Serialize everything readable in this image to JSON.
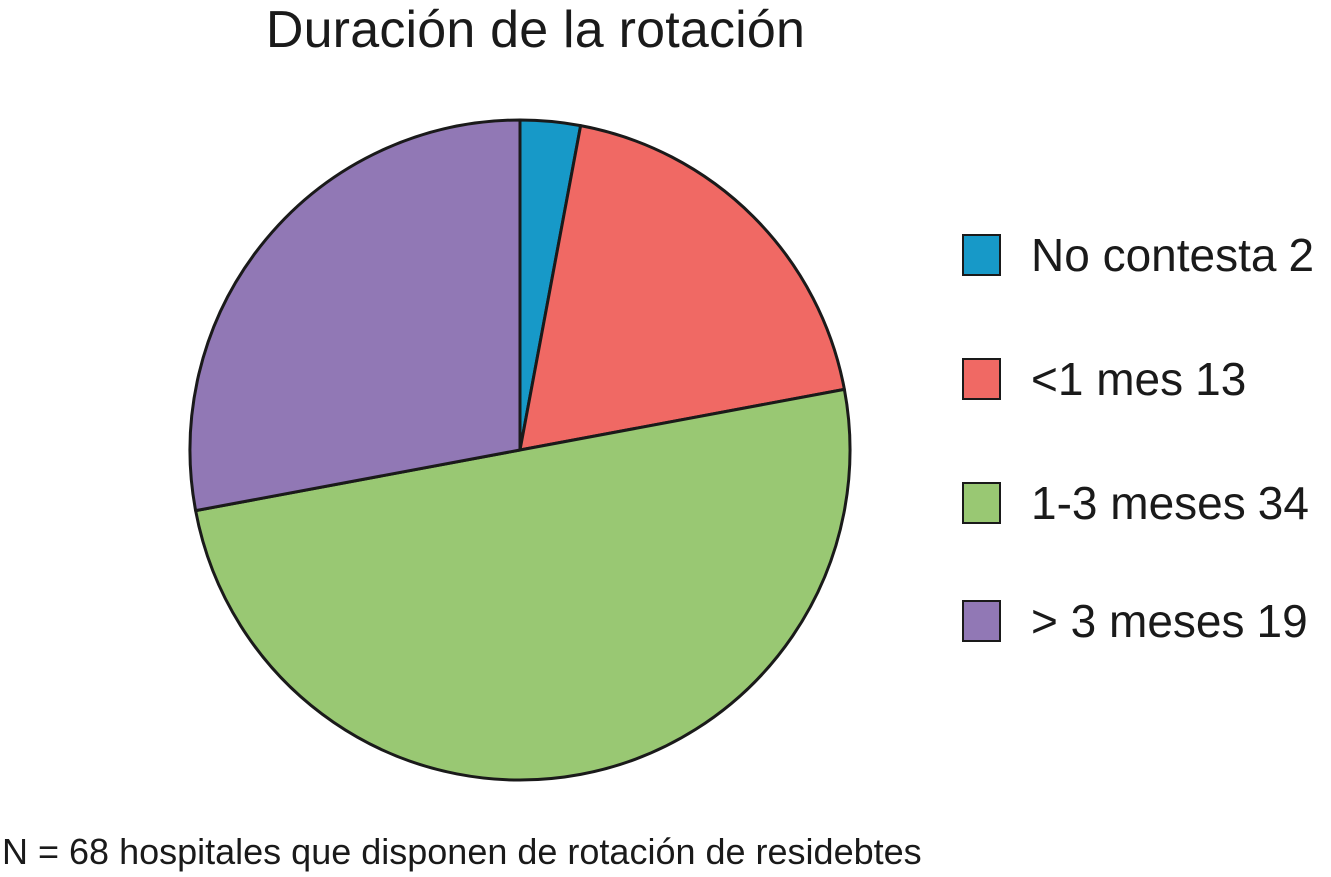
{
  "chart_data": {
    "type": "pie",
    "title": "Duración de la rotación",
    "slices": [
      {
        "label": "No contesta",
        "value": 2,
        "color": "#1799c8"
      },
      {
        "label": "<1 mes",
        "value": 13,
        "color": "#f06964"
      },
      {
        "label": "1-3 meses",
        "value": 34,
        "color": "#99c873"
      },
      {
        "label": "> 3 meses",
        "value": 19,
        "color": "#9178b5"
      }
    ],
    "legend_position": "right",
    "footnote": "N = 68 hospitales que disponen de rotación de residebtes"
  }
}
